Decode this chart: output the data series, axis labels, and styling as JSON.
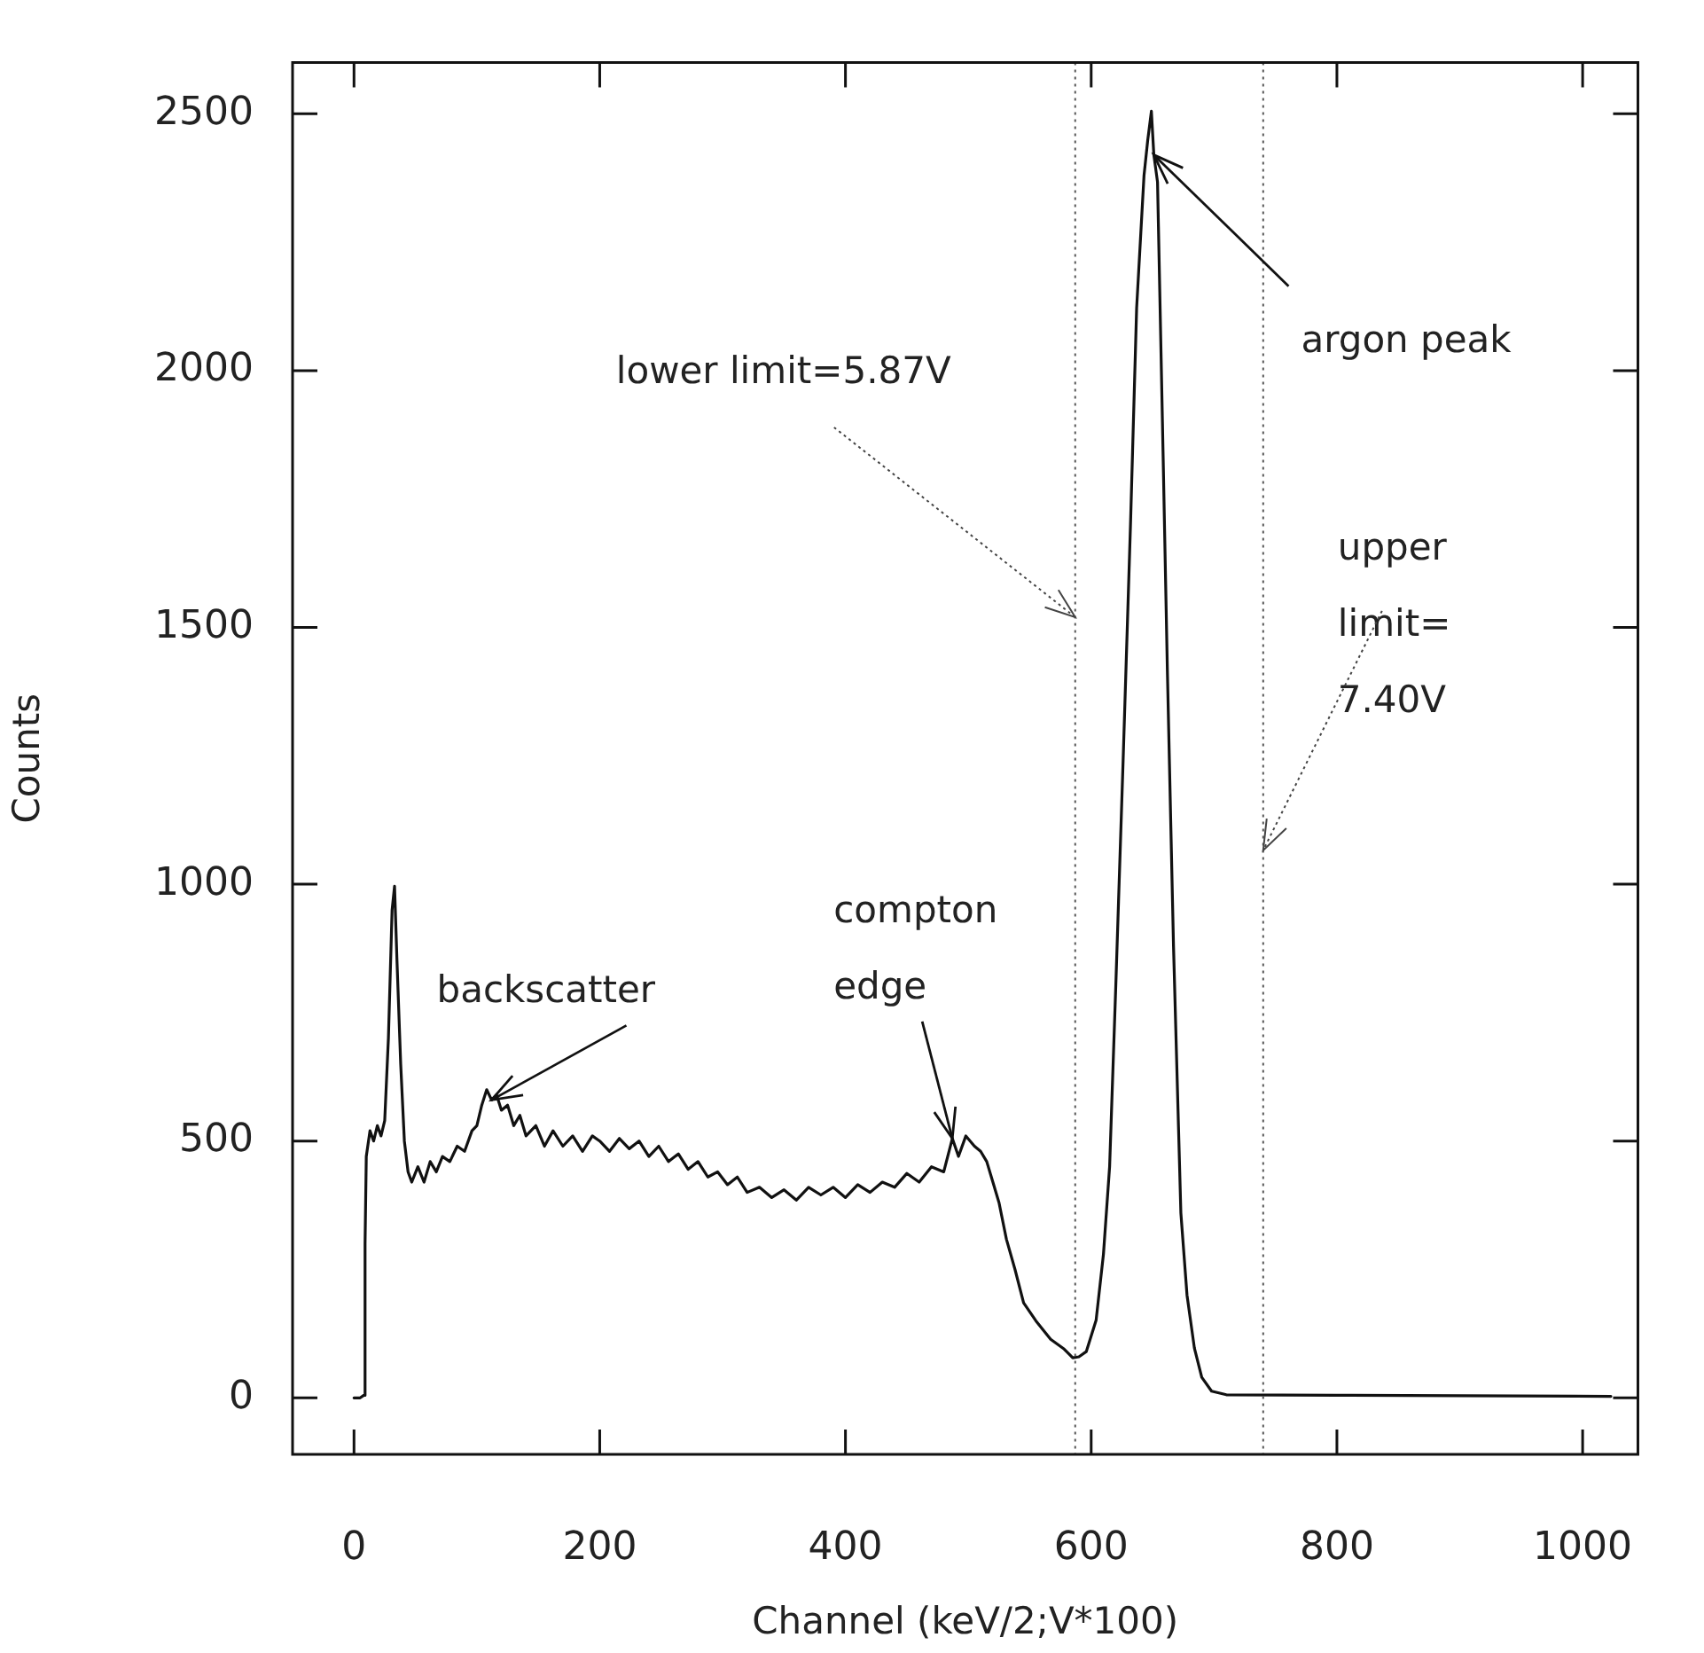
{
  "chart_data": {
    "type": "line",
    "xlabel": "Channel (keV/2;V*100)",
    "ylabel": "Counts",
    "xlim": [
      -50,
      1045
    ],
    "ylim": [
      -110,
      2600
    ],
    "xticks": [
      0,
      200,
      400,
      600,
      800,
      1000
    ],
    "yticks": [
      0,
      500,
      1000,
      1500,
      2000,
      2500
    ],
    "grid": false,
    "legend": false,
    "marker": "none",
    "line_style": "solid",
    "series": [
      {
        "color": "#111111",
        "x": [
          0,
          5,
          8,
          9,
          10,
          13,
          16,
          19,
          22,
          25,
          28,
          31,
          33,
          35,
          38,
          41,
          44,
          47,
          52,
          57,
          62,
          67,
          72,
          78,
          84,
          90,
          96,
          100,
          104,
          108,
          112,
          116,
          120,
          125,
          130,
          135,
          140,
          148,
          155,
          162,
          170,
          178,
          186,
          194,
          200,
          208,
          216,
          224,
          232,
          240,
          248,
          256,
          264,
          272,
          280,
          288,
          296,
          304,
          312,
          320,
          330,
          340,
          350,
          360,
          370,
          380,
          390,
          400,
          410,
          420,
          430,
          440,
          450,
          460,
          470,
          480,
          487,
          492,
          498,
          505,
          510,
          515,
          520,
          525,
          531,
          538,
          545,
          555,
          567,
          578,
          585,
          590,
          596,
          604,
          610,
          615,
          620,
          626,
          632,
          637,
          643,
          646,
          649,
          651,
          654,
          658,
          662,
          667,
          673,
          678,
          684,
          690,
          698,
          710,
          800,
          900,
          1023
        ],
        "values": [
          0,
          0,
          5,
          300,
          470,
          520,
          500,
          530,
          510,
          540,
          700,
          950,
          996,
          850,
          650,
          500,
          440,
          420,
          450,
          420,
          460,
          440,
          470,
          460,
          490,
          480,
          520,
          530,
          570,
          600,
          580,
          590,
          560,
          570,
          530,
          550,
          510,
          530,
          490,
          520,
          490,
          510,
          480,
          510,
          500,
          480,
          505,
          485,
          500,
          470,
          490,
          460,
          475,
          445,
          460,
          430,
          440,
          415,
          430,
          400,
          410,
          390,
          405,
          385,
          410,
          395,
          410,
          390,
          415,
          400,
          420,
          410,
          437,
          420,
          450,
          440,
          505,
          470,
          510,
          490,
          480,
          460,
          420,
          380,
          309,
          250,
          185,
          150,
          114,
          95,
          78,
          80,
          90,
          151,
          280,
          450,
          800,
          1241,
          1700,
          2122,
          2380,
          2448,
          2505,
          2420,
          2367,
          1900,
          1418,
          880,
          360,
          200,
          97,
          40,
          13,
          6,
          5,
          4,
          3
        ]
      }
    ],
    "ref_lines": [
      {
        "axis": "x",
        "value": 587,
        "line_style": "dotted",
        "color": "#555555"
      },
      {
        "axis": "x",
        "value": 740,
        "line_style": "dotted",
        "color": "#555555"
      }
    ],
    "annotations": [
      {
        "text": "argon peak",
        "x": 651,
        "y": 2420
      },
      {
        "text": "lower limit=5.87V",
        "x": 587,
        "y": 1520
      },
      {
        "text": "upper limit= 7.40V",
        "x": 740,
        "y": 1066
      },
      {
        "text": "compton edge",
        "x": 487,
        "y": 505
      },
      {
        "text": "backscatter",
        "x": 112,
        "y": 580
      }
    ]
  }
}
